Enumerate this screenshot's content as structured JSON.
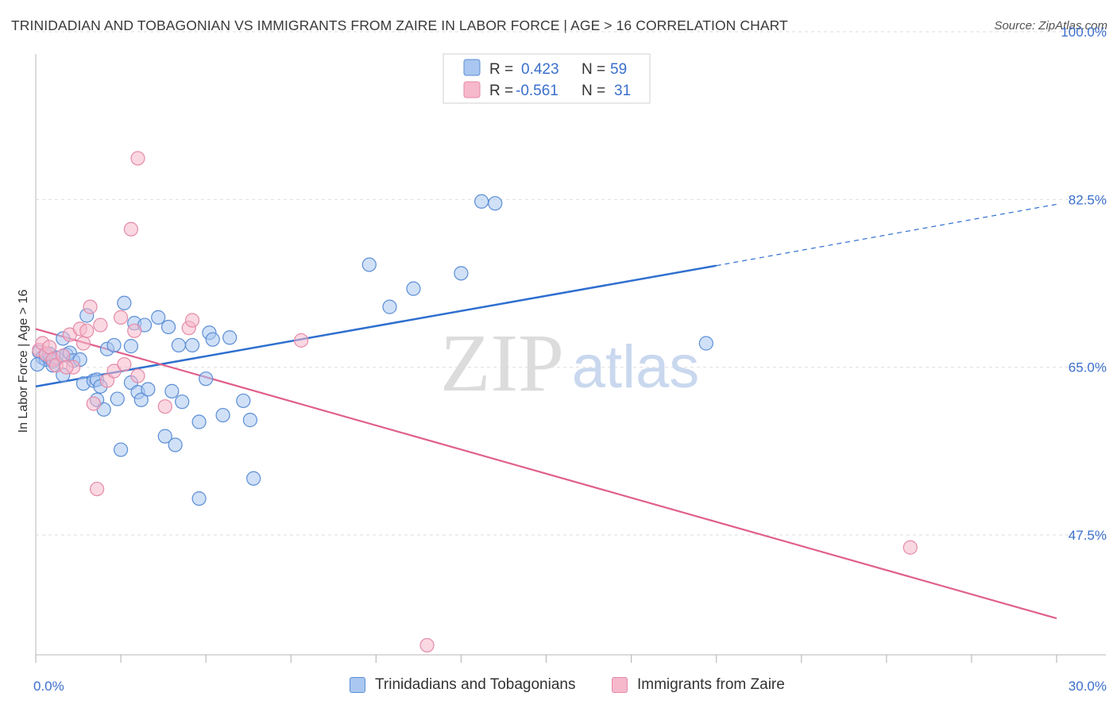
{
  "title": "TRINIDADIAN AND TOBAGONIAN VS IMMIGRANTS FROM ZAIRE IN LABOR FORCE | AGE > 16 CORRELATION CHART",
  "source": "Source: ZipAtlas.com",
  "watermark": {
    "zip": "ZIP",
    "atlas": "atlas"
  },
  "legend_top": {
    "rows": [
      {
        "r_label": "R =",
        "r_value": "0.423",
        "n_label": "N =",
        "n_value": "59"
      },
      {
        "r_label": "R =",
        "r_value": "-0.561",
        "n_label": "N =",
        "n_value": "31"
      }
    ]
  },
  "legend_bottom": {
    "items": [
      {
        "label": "Trinidadians and Tobagonians"
      },
      {
        "label": "Immigrants from Zaire"
      }
    ]
  },
  "colors": {
    "blue_fill": "#a9c7f0",
    "blue_stroke": "#5b8ed6",
    "blue_line": "#2f6fcf",
    "pink_fill": "#f6b8cb",
    "pink_stroke": "#e58aa8",
    "pink_line": "#e0608c",
    "axis_label": "#3b6fcc",
    "grid": "#dedede"
  },
  "chart_data": {
    "type": "scatter",
    "xlabel": "",
    "ylabel": "In Labor Force | Age > 16",
    "xlim": [
      0,
      30
    ],
    "ylim": [
      35,
      100
    ],
    "x_tick_labels": [
      {
        "value": 0,
        "label": "0.0%"
      },
      {
        "value": 30,
        "label": "30.0%"
      }
    ],
    "y_tick_labels": [
      {
        "value": 100,
        "label": "100.0%"
      },
      {
        "value": 82.5,
        "label": "82.5%"
      },
      {
        "value": 65,
        "label": "65.0%"
      },
      {
        "value": 47.5,
        "label": "47.5%"
      }
    ],
    "grid": true,
    "legend_position": "top-center",
    "series": [
      {
        "name": "Trinidadians and Tobagonians",
        "color": "#a9c7f0",
        "points": [
          [
            0.1,
            66.6
          ],
          [
            0.2,
            66.0
          ],
          [
            0.3,
            65.8
          ],
          [
            0.3,
            66.2
          ],
          [
            0.4,
            66.4
          ],
          [
            0.5,
            65.6
          ],
          [
            0.5,
            65.2
          ],
          [
            0.6,
            66.0
          ],
          [
            0.8,
            68.0
          ],
          [
            0.8,
            64.2
          ],
          [
            0.9,
            66.3
          ],
          [
            1.0,
            66.5
          ],
          [
            1.1,
            65.7
          ],
          [
            1.3,
            65.8
          ],
          [
            1.4,
            63.3
          ],
          [
            1.5,
            70.4
          ],
          [
            1.7,
            63.6
          ],
          [
            1.8,
            63.7
          ],
          [
            1.8,
            61.6
          ],
          [
            1.9,
            63.0
          ],
          [
            2.0,
            60.6
          ],
          [
            2.1,
            66.9
          ],
          [
            2.3,
            67.3
          ],
          [
            2.4,
            61.7
          ],
          [
            2.5,
            56.4
          ],
          [
            2.6,
            71.7
          ],
          [
            2.8,
            63.4
          ],
          [
            2.8,
            67.2
          ],
          [
            2.9,
            69.6
          ],
          [
            3.0,
            62.4
          ],
          [
            3.1,
            61.6
          ],
          [
            3.2,
            69.4
          ],
          [
            3.3,
            62.7
          ],
          [
            3.6,
            70.2
          ],
          [
            3.8,
            57.8
          ],
          [
            3.9,
            69.2
          ],
          [
            4.0,
            62.5
          ],
          [
            4.1,
            56.9
          ],
          [
            4.2,
            67.3
          ],
          [
            4.3,
            61.4
          ],
          [
            4.6,
            67.3
          ],
          [
            4.8,
            59.3
          ],
          [
            4.8,
            51.3
          ],
          [
            5.0,
            63.8
          ],
          [
            5.1,
            68.6
          ],
          [
            5.2,
            67.9
          ],
          [
            5.5,
            60.0
          ],
          [
            5.7,
            68.1
          ],
          [
            6.1,
            61.5
          ],
          [
            6.3,
            59.5
          ],
          [
            6.4,
            53.4
          ],
          [
            9.8,
            75.7
          ],
          [
            10.4,
            71.3
          ],
          [
            11.1,
            73.2
          ],
          [
            12.5,
            74.8
          ],
          [
            13.1,
            82.3
          ],
          [
            13.5,
            82.1
          ],
          [
            19.7,
            67.5
          ],
          [
            0.05,
            65.3
          ]
        ]
      },
      {
        "name": "Immigrants from Zaire",
        "color": "#f6b8cb",
        "points": [
          [
            0.1,
            66.8
          ],
          [
            0.2,
            67.5
          ],
          [
            0.3,
            66.4
          ],
          [
            0.4,
            67.1
          ],
          [
            0.5,
            65.8
          ],
          [
            0.6,
            65.2
          ],
          [
            0.8,
            66.2
          ],
          [
            1.0,
            68.4
          ],
          [
            1.1,
            65.0
          ],
          [
            1.3,
            69.0
          ],
          [
            1.4,
            67.5
          ],
          [
            1.5,
            68.8
          ],
          [
            1.6,
            71.3
          ],
          [
            1.7,
            61.2
          ],
          [
            1.8,
            52.3
          ],
          [
            1.9,
            69.4
          ],
          [
            2.1,
            63.6
          ],
          [
            2.3,
            64.6
          ],
          [
            2.5,
            70.2
          ],
          [
            2.6,
            65.3
          ],
          [
            2.8,
            79.4
          ],
          [
            2.9,
            68.8
          ],
          [
            3.0,
            64.1
          ],
          [
            3.0,
            86.8
          ],
          [
            3.8,
            60.9
          ],
          [
            4.5,
            69.1
          ],
          [
            4.6,
            69.9
          ],
          [
            7.8,
            67.8
          ],
          [
            25.7,
            46.2
          ],
          [
            11.5,
            36.0
          ],
          [
            0.9,
            65.0
          ]
        ]
      }
    ],
    "trend_lines": [
      {
        "series": "Trinidadians and Tobagonians",
        "solid": [
          [
            0,
            63.0
          ],
          [
            20,
            75.6
          ]
        ],
        "dashed": [
          [
            20,
            75.6
          ],
          [
            30,
            82.0
          ]
        ]
      },
      {
        "series": "Immigrants from Zaire",
        "solid": [
          [
            0,
            69.0
          ],
          [
            30,
            38.8
          ]
        ]
      }
    ]
  }
}
